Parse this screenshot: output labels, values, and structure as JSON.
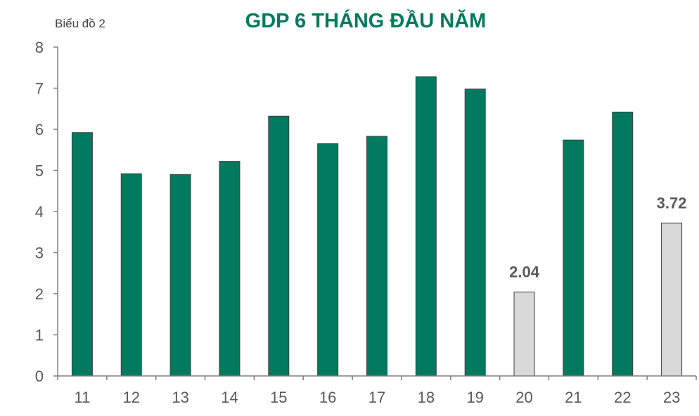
{
  "caption": "Biểu đồ 2",
  "chart_data": {
    "type": "bar",
    "title": "GDP 6 THÁNG ĐẦU NĂM",
    "xlabel": "",
    "ylabel": "",
    "categories": [
      "11",
      "12",
      "13",
      "14",
      "15",
      "16",
      "17",
      "18",
      "19",
      "20",
      "21",
      "22",
      "23"
    ],
    "values": [
      5.92,
      4.92,
      4.9,
      5.22,
      6.32,
      5.65,
      5.83,
      7.28,
      6.98,
      2.04,
      5.74,
      6.42,
      3.72
    ],
    "data_labels": [
      "",
      "",
      "",
      "",
      "",
      "",
      "",
      "",
      "",
      "2.04",
      "",
      "",
      "3.72"
    ],
    "highlight": [
      false,
      false,
      false,
      false,
      false,
      false,
      false,
      false,
      false,
      true,
      false,
      false,
      true
    ],
    "ylim": [
      0,
      8
    ],
    "yticks": [
      "0",
      "1",
      "2",
      "3",
      "4",
      "5",
      "6",
      "7",
      "8"
    ],
    "grid": false,
    "legend": "none",
    "colors": {
      "bar": "#007a5e",
      "highlight": "#d9d9d9",
      "axis": "#7f7f7f",
      "title": "#007a5e"
    }
  }
}
